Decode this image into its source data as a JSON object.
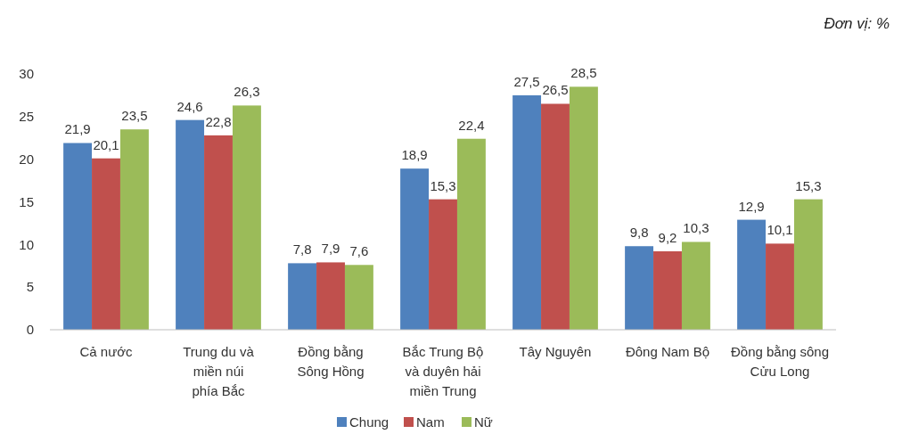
{
  "chart_data": {
    "type": "bar",
    "annotations": [
      "Đơn vị: %"
    ],
    "categories": [
      "Cả nước",
      "Trung du và\nmiền núi\nphía Bắc",
      "Đồng bằng\nSông Hồng",
      "Bắc Trung Bộ\nvà duyên hải\nmiền Trung",
      "Tây Nguyên",
      "Đông Nam Bộ",
      "Đồng bằng sông\nCửu Long"
    ],
    "series": [
      {
        "name": "Chung",
        "color": "#4f81bd",
        "values": [
          21.9,
          24.6,
          7.8,
          18.9,
          27.5,
          9.8,
          12.9
        ],
        "value_labels": [
          "21,9",
          "24,6",
          "7,8",
          "18,9",
          "27,5",
          "9,8",
          "12,9"
        ]
      },
      {
        "name": "Nam",
        "color": "#c0504d",
        "values": [
          20.1,
          22.8,
          7.9,
          15.3,
          26.5,
          9.2,
          10.1
        ],
        "value_labels": [
          "20,1",
          "22,8",
          "7,9",
          "15,3",
          "26,5",
          "9,2",
          "10,1"
        ]
      },
      {
        "name": "Nữ",
        "color": "#9bbb59",
        "values": [
          23.5,
          26.3,
          7.6,
          22.4,
          28.5,
          10.3,
          15.3
        ],
        "value_labels": [
          "23,5",
          "26,3",
          "7,6",
          "22,4",
          "28,5",
          "10,3",
          "15,3"
        ]
      }
    ],
    "ylim": [
      0,
      30
    ],
    "yticks": [
      0,
      5,
      10,
      15,
      20,
      25,
      30
    ],
    "legend": "bottom"
  }
}
